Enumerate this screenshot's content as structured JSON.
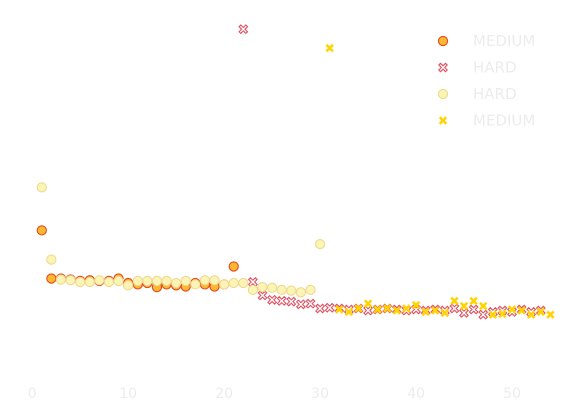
{
  "chart_data": {
    "type": "scatter",
    "title": "",
    "xlabel": "",
    "ylabel": "",
    "xlim": [
      -2,
      55
    ],
    "ylim": [
      -0.05,
      1.02
    ],
    "xticks": [
      0,
      10,
      20,
      30,
      40,
      50
    ],
    "xtick_labels": [
      "0",
      "10",
      "20",
      "30",
      "40",
      "50"
    ],
    "grid": false,
    "legend_position": "top-right",
    "series": [
      {
        "name": "MEDIUM",
        "marker": "circle",
        "fill": "#f8b830",
        "stroke": "#e8461e",
        "points": [
          [
            1,
            0.385
          ],
          [
            2,
            0.245
          ],
          [
            3,
            0.245
          ],
          [
            4,
            0.242
          ],
          [
            5,
            0.238
          ],
          [
            6,
            0.24
          ],
          [
            7,
            0.238
          ],
          [
            8,
            0.238
          ],
          [
            9,
            0.245
          ],
          [
            10,
            0.232
          ],
          [
            11,
            0.228
          ],
          [
            12,
            0.232
          ],
          [
            13,
            0.22
          ],
          [
            14,
            0.228
          ],
          [
            15,
            0.225
          ],
          [
            16,
            0.222
          ],
          [
            17,
            0.232
          ],
          [
            18,
            0.228
          ],
          [
            19,
            0.222
          ],
          [
            20,
            0.228
          ],
          [
            21,
            0.28
          ]
        ]
      },
      {
        "name": "HARD",
        "marker": "x",
        "fill": "#ffffff",
        "stroke": "#e05060",
        "points": [
          [
            22,
            0.97
          ],
          [
            23,
            0.235
          ],
          [
            24,
            0.196
          ],
          [
            25,
            0.183
          ],
          [
            26,
            0.18
          ],
          [
            27,
            0.178
          ],
          [
            28,
            0.17
          ],
          [
            29,
            0.172
          ],
          [
            30,
            0.158
          ],
          [
            31,
            0.16
          ],
          [
            32,
            0.158
          ],
          [
            33,
            0.155
          ],
          [
            34,
            0.158
          ],
          [
            35,
            0.152
          ],
          [
            36,
            0.155
          ],
          [
            37,
            0.158
          ],
          [
            38,
            0.155
          ],
          [
            39,
            0.152
          ],
          [
            40,
            0.155
          ],
          [
            41,
            0.152
          ],
          [
            42,
            0.155
          ],
          [
            43,
            0.152
          ],
          [
            44,
            0.158
          ],
          [
            45,
            0.145
          ],
          [
            46,
            0.155
          ],
          [
            47,
            0.14
          ],
          [
            48,
            0.148
          ],
          [
            49,
            0.152
          ],
          [
            50,
            0.148
          ],
          [
            51,
            0.155
          ],
          [
            52,
            0.148
          ],
          [
            53,
            0.152
          ]
        ]
      },
      {
        "name": "HARD",
        "marker": "circle",
        "fill": "#faf5b4",
        "stroke": "#f0d890",
        "points": [
          [
            1,
            0.51
          ],
          [
            2,
            0.3
          ],
          [
            3,
            0.242
          ],
          [
            4,
            0.24
          ],
          [
            5,
            0.235
          ],
          [
            6,
            0.235
          ],
          [
            7,
            0.24
          ],
          [
            8,
            0.235
          ],
          [
            9,
            0.238
          ],
          [
            10,
            0.225
          ],
          [
            11,
            0.238
          ],
          [
            12,
            0.238
          ],
          [
            13,
            0.238
          ],
          [
            14,
            0.238
          ],
          [
            15,
            0.232
          ],
          [
            16,
            0.238
          ],
          [
            17,
            0.228
          ],
          [
            18,
            0.24
          ],
          [
            19,
            0.24
          ],
          [
            20,
            0.228
          ],
          [
            21,
            0.232
          ],
          [
            22,
            0.232
          ],
          [
            23,
            0.212
          ],
          [
            24,
            0.22
          ],
          [
            25,
            0.218
          ],
          [
            26,
            0.212
          ],
          [
            27,
            0.21
          ],
          [
            28,
            0.205
          ],
          [
            29,
            0.212
          ],
          [
            30,
            0.345
          ]
        ]
      },
      {
        "name": "MEDIUM",
        "marker": "x-filled",
        "fill": "#ffd400",
        "stroke": "#ffd400",
        "points": [
          [
            31,
            0.915
          ],
          [
            32,
            0.155
          ],
          [
            33,
            0.148
          ],
          [
            34,
            0.158
          ],
          [
            35,
            0.172
          ],
          [
            36,
            0.155
          ],
          [
            37,
            0.158
          ],
          [
            38,
            0.152
          ],
          [
            39,
            0.158
          ],
          [
            40,
            0.168
          ],
          [
            41,
            0.148
          ],
          [
            42,
            0.152
          ],
          [
            43,
            0.145
          ],
          [
            44,
            0.18
          ],
          [
            45,
            0.165
          ],
          [
            46,
            0.18
          ],
          [
            47,
            0.165
          ],
          [
            48,
            0.14
          ],
          [
            49,
            0.142
          ],
          [
            50,
            0.155
          ],
          [
            51,
            0.152
          ],
          [
            52,
            0.14
          ],
          [
            53,
            0.148
          ],
          [
            54,
            0.14
          ]
        ]
      }
    ]
  }
}
